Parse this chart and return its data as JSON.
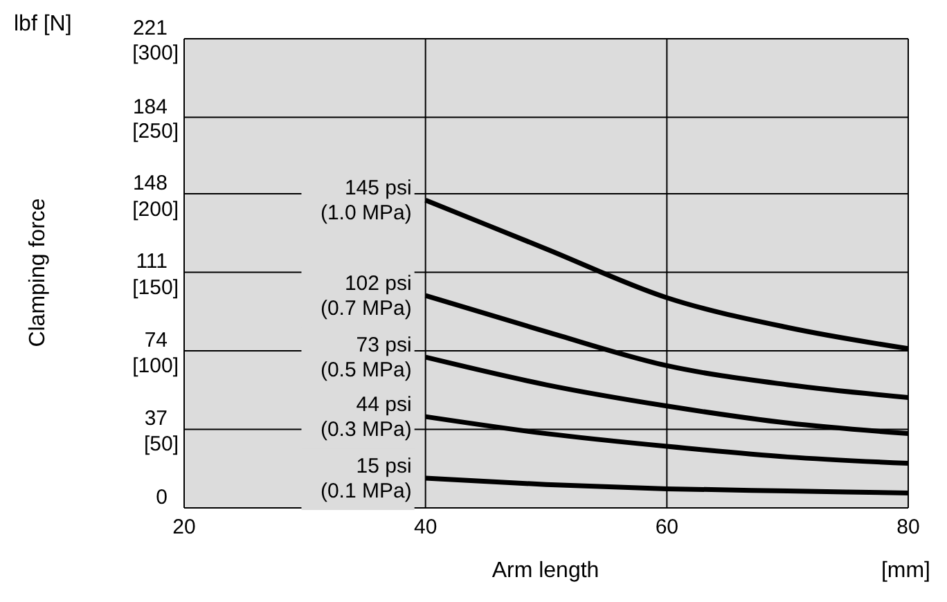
{
  "chart_data": {
    "type": "line",
    "ylabel": "Clamping force",
    "xlabel": "Arm length",
    "annotations": [
      "lbf [N]",
      "[mm]"
    ],
    "xlim": [
      20,
      80
    ],
    "xticks": [
      20,
      40,
      60,
      80
    ],
    "ylim": [
      0,
      221
    ],
    "yticks": [
      0,
      37,
      74,
      111,
      148,
      184,
      221
    ],
    "y2lim": [
      0,
      300
    ],
    "y2ticks": [
      {
        "value": 50,
        "label": "[50]"
      },
      {
        "value": 100,
        "label": "[100]"
      },
      {
        "value": 150,
        "label": "[150]"
      },
      {
        "value": 200,
        "label": "[200]"
      },
      {
        "value": 250,
        "label": "[250]"
      },
      {
        "value": 300,
        "label": "[300]"
      }
    ],
    "grid": true,
    "marker": "none",
    "line_style": "solid",
    "x": [
      40,
      50,
      60,
      70,
      80
    ],
    "series": [
      {
        "name": "145 psi (1.0 MPa)",
        "color": "#000000",
        "values": [
          145,
          122,
          99,
          85,
          75
        ]
      },
      {
        "name": "102 psi (0.7 MPa)",
        "color": "#000000",
        "values": [
          100,
          83,
          67,
          58,
          52
        ]
      },
      {
        "name": "73 psi (0.5 MPa)",
        "color": "#000000",
        "values": [
          71,
          58,
          48,
          40,
          35
        ]
      },
      {
        "name": "44 psi (0.3 MPa)",
        "color": "#000000",
        "values": [
          43,
          35,
          29,
          24,
          21
        ]
      },
      {
        "name": "15 psi (0.1 MPa)",
        "color": "#000000",
        "values": [
          14,
          11,
          9,
          8,
          7
        ]
      }
    ]
  }
}
